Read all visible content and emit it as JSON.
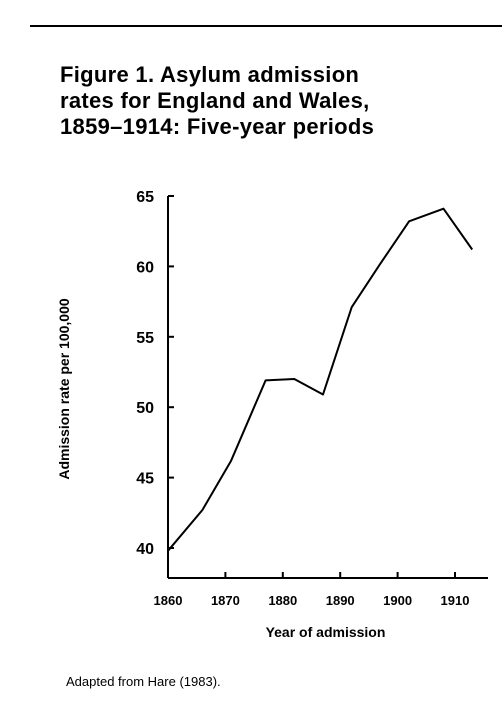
{
  "figure": {
    "title_lines": [
      "Figure 1.  Asylum admission",
      "rates for England and Wales,",
      "1859–1914: Five-year periods"
    ],
    "source_note": "Adapted from Hare (1983)."
  },
  "chart_data": {
    "type": "line",
    "xlabel": "Year of admission",
    "ylabel": "Admission rate per 100,000",
    "xlim": [
      1860,
      1913
    ],
    "ylim": [
      38,
      65
    ],
    "x_ticks": [
      1860,
      1870,
      1880,
      1890,
      1900,
      1910
    ],
    "y_ticks": [
      40,
      45,
      50,
      55,
      60,
      65
    ],
    "grid": false,
    "legend": "none",
    "series": [
      {
        "x": [
          1860,
          1866,
          1871,
          1877,
          1882,
          1887,
          1892,
          1897,
          1902,
          1908,
          1913
        ],
        "y": [
          39.8,
          42.7,
          46.2,
          51.9,
          52.0,
          50.9,
          57.1,
          60.2,
          63.2,
          64.1,
          61.2
        ]
      }
    ],
    "colors": {
      "line": "#000000",
      "axis": "#000000"
    }
  }
}
